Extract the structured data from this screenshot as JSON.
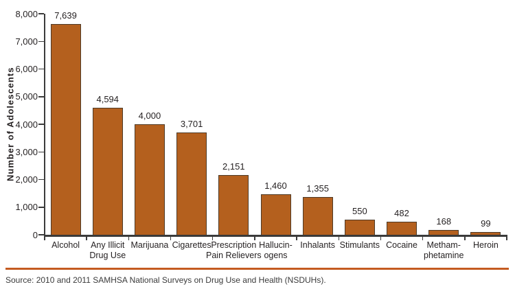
{
  "chart_data": {
    "type": "bar",
    "title": "",
    "xlabel": "",
    "ylabel": "Number of Adolescents",
    "ylim": [
      0,
      8000
    ],
    "ytick_interval": 1000,
    "ytick_labels": [
      "0",
      "1,000",
      "2,000",
      "3,000",
      "4,000",
      "5,000",
      "6,000",
      "7,000",
      "8,000"
    ],
    "grid": false,
    "legend_position": "none",
    "categories": [
      "Alcohol",
      "Any Illicit\nDrug Use",
      "Marijuana",
      "Cigarettes",
      "Prescription\nPain Relievers",
      "Hallucin-\nogens",
      "Inhalants",
      "Stimulants",
      "Cocaine",
      "Metham-\nphetamine",
      "Heroin"
    ],
    "values": [
      7639,
      4594,
      4000,
      3701,
      2151,
      1460,
      1355,
      550,
      482,
      168,
      99
    ],
    "value_labels": [
      "7,639",
      "4,594",
      "4,000",
      "3,701",
      "2,151",
      "1,460",
      "1,355",
      "550",
      "482",
      "168",
      "99"
    ],
    "colors": {
      "bar_fill": "#b4601e",
      "bar_border": "#4d3a27",
      "axis": "#3a3a3a",
      "text": "#231f20"
    }
  },
  "footer": {
    "separator_color": "#c45b21",
    "source": "Source: 2010 and 2011 SAMHSA National Surveys on Drug Use and Health (NSDUHs)."
  }
}
